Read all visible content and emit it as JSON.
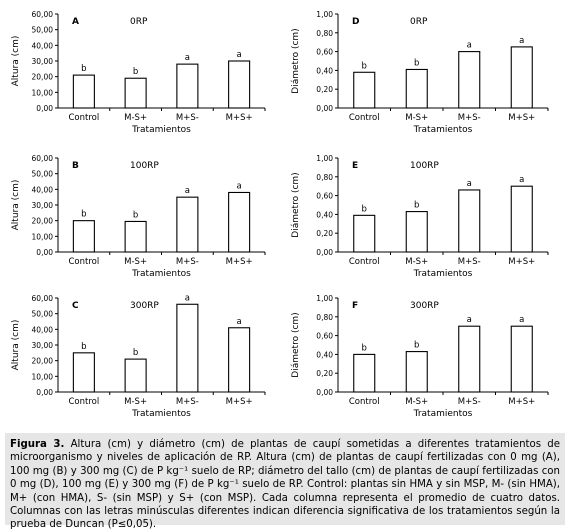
{
  "chart_data": [
    {
      "type": "bar",
      "panel_letter": "A",
      "annotation": "0RP",
      "ylabel": "Altura (cm)",
      "xlabel": "Tratamientos",
      "categories": [
        "Control",
        "M-S+",
        "M+S-",
        "M+S+"
      ],
      "values": [
        21,
        19,
        28,
        30
      ],
      "significance_letters": [
        "b",
        "b",
        "a",
        "a"
      ],
      "ylim": [
        0,
        60
      ],
      "yticks": [
        "0,00",
        "10,00",
        "20,00",
        "30,00",
        "40,00",
        "50,00",
        "60,00"
      ]
    },
    {
      "type": "bar",
      "panel_letter": "D",
      "annotation": "0RP",
      "ylabel": "Diámetro (cm)",
      "xlabel": "Tratamientos",
      "categories": [
        "Control",
        "M-S+",
        "M+S-",
        "M+S+"
      ],
      "values": [
        0.38,
        0.41,
        0.6,
        0.65
      ],
      "significance_letters": [
        "b",
        "b",
        "a",
        "a"
      ],
      "ylim": [
        0,
        1
      ],
      "yticks": [
        "0,00",
        "0,20",
        "0,40",
        "0,60",
        "0,80",
        "1,00"
      ]
    },
    {
      "type": "bar",
      "panel_letter": "B",
      "annotation": "100RP",
      "ylabel": "Altura (cm)",
      "xlabel": "Tratamientos",
      "categories": [
        "Control",
        "M-S+",
        "M+S-",
        "M+S+"
      ],
      "values": [
        20,
        19.5,
        35,
        38
      ],
      "significance_letters": [
        "b",
        "b",
        "a",
        "a"
      ],
      "ylim": [
        0,
        60
      ],
      "yticks": [
        "0,00",
        "10,00",
        "20,00",
        "30,00",
        "40,00",
        "50,00",
        "60,00"
      ]
    },
    {
      "type": "bar",
      "panel_letter": "E",
      "annotation": "100RP",
      "ylabel": "Diámetro (cm)",
      "xlabel": "Tratamientos",
      "categories": [
        "Control",
        "M-S+",
        "M+S-",
        "M+S+"
      ],
      "values": [
        0.39,
        0.43,
        0.66,
        0.7
      ],
      "significance_letters": [
        "b",
        "b",
        "a",
        "a"
      ],
      "ylim": [
        0,
        1
      ],
      "yticks": [
        "0,00",
        "0,20",
        "0,40",
        "0,60",
        "0,80",
        "1,00"
      ]
    },
    {
      "type": "bar",
      "panel_letter": "C",
      "annotation": "300RP",
      "ylabel": "Altura (cm)",
      "xlabel": "Tratamientos",
      "categories": [
        "Control",
        "M-S+",
        "M+S-",
        "M+S+"
      ],
      "values": [
        25,
        21,
        56,
        41
      ],
      "significance_letters": [
        "b",
        "b",
        "a",
        "a"
      ],
      "ylim": [
        0,
        60
      ],
      "yticks": [
        "0,00",
        "10,00",
        "20,00",
        "30,00",
        "40,00",
        "50,00",
        "60,00"
      ]
    },
    {
      "type": "bar",
      "panel_letter": "F",
      "annotation": "300RP",
      "ylabel": "Diámetro (cm)",
      "xlabel": "Tratamientos",
      "categories": [
        "Control",
        "M-S+",
        "M+S-",
        "M+S+"
      ],
      "values": [
        0.4,
        0.43,
        0.7,
        0.7
      ],
      "significance_letters": [
        "b",
        "b",
        "a",
        "a"
      ],
      "ylim": [
        0,
        1
      ],
      "yticks": [
        "0,00",
        "0,20",
        "0,40",
        "0,60",
        "0,80",
        "1,00"
      ]
    }
  ],
  "caption": {
    "label": "Figura 3.",
    "text": " Altura (cm) y diámetro (cm) de plantas de caupí sometidas a diferentes tratamientos de microorganismo y niveles de aplicación de RP. Altura (cm) de plantas de caupí fertilizadas con 0 mg (A), 100 mg (B) y 300 mg (C) de P kg⁻¹ suelo de RP; diámetro del tallo (cm) de plantas de caupí fertilizadas con 0 mg (D), 100 mg (E) y 300 mg (F) de P kg⁻¹ suelo de RP. Control: plantas sin HMA y sin MSP, M- (sin HMA), M+ (con HMA), S- (sin MSP) y S+ (con MSP). Cada columna representa el promedio de cuatro datos. Columnas con las letras minúsculas diferentes indican diferencia significativa de los tratamientos según la prueba de Duncan (P≤0,05)."
  }
}
